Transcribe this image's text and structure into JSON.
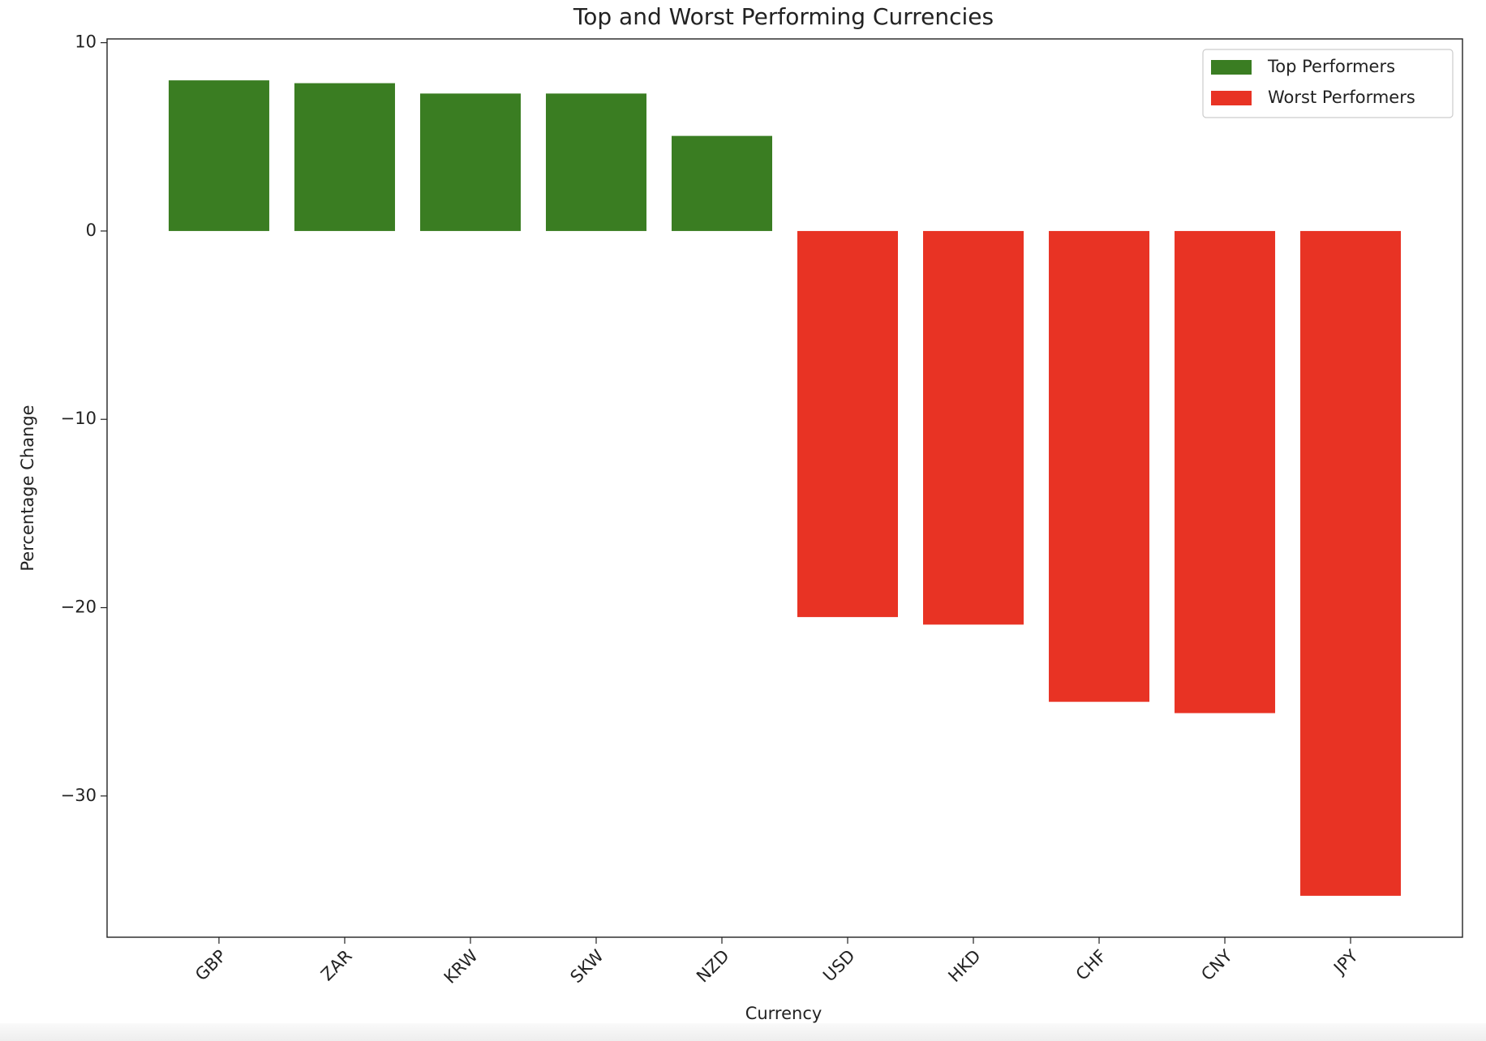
{
  "chart_data": {
    "type": "bar",
    "title": "Top and Worst Performing Currencies",
    "x_label": "Currency",
    "y_label": "Percentage Change",
    "categories": [
      "GBP",
      "ZAR",
      "KRW",
      "SKW",
      "NZD",
      "USD",
      "HKD",
      "CHF",
      "CNY",
      "JPY"
    ],
    "series": [
      {
        "name": "Top Performers",
        "color": "#3a7d22",
        "values": [
          8.0,
          7.85,
          7.3,
          7.3,
          5.05,
          null,
          null,
          null,
          null,
          null
        ]
      },
      {
        "name": "Worst Performers",
        "color": "#e83324",
        "values": [
          null,
          null,
          null,
          null,
          null,
          -20.5,
          -20.9,
          -25.0,
          -25.6,
          -35.3
        ]
      }
    ],
    "ylim": [
      -37.5,
      10.2
    ],
    "yticks": [
      {
        "value": -30,
        "label": "−30"
      },
      {
        "value": -20,
        "label": "−20"
      },
      {
        "value": -10,
        "label": "−10"
      },
      0,
      10
    ],
    "legend": "upper right",
    "grid": false
  }
}
